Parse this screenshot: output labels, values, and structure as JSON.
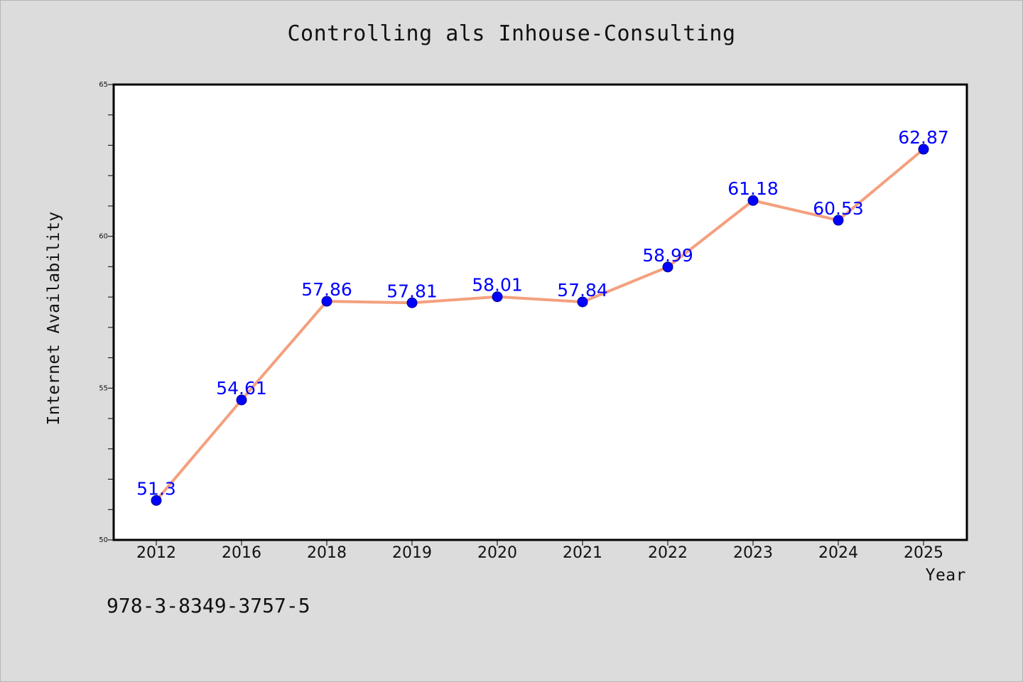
{
  "chart_data": {
    "type": "line",
    "title": "Controlling als Inhouse-Consulting",
    "xlabel": "Year",
    "ylabel": "Internet Availability",
    "categories": [
      "2012",
      "2016",
      "2018",
      "2019",
      "2020",
      "2021",
      "2022",
      "2023",
      "2024",
      "2025"
    ],
    "series": [
      {
        "values": [
          51.3,
          54.61,
          57.86,
          57.81,
          58.01,
          57.84,
          58.99,
          61.18,
          60.53,
          62.87
        ],
        "labels": [
          "51.3",
          "54.61",
          "57.86",
          "57.81",
          "58.01",
          "57.84",
          "58.99",
          "61.18",
          "60.53",
          "62.87"
        ],
        "line_color": "#f4a07e",
        "marker_color": "#0000ff"
      }
    ],
    "ylim": [
      50,
      65
    ],
    "y_major_ticks": [
      50,
      55,
      60,
      65
    ],
    "y_tick_labels": [
      "50",
      "55",
      "60",
      "65"
    ],
    "y_minor_step": 1,
    "grid": false,
    "legend": "none"
  },
  "footer": {
    "isbn": "978-3-8349-3757-5"
  },
  "colors": {
    "background": "#dcdcdc",
    "plot_background": "#ffffff"
  }
}
